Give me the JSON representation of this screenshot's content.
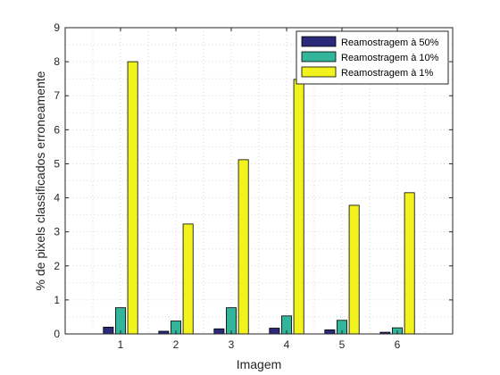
{
  "chart_data": {
    "type": "bar",
    "categories": [
      "1",
      "2",
      "3",
      "4",
      "5",
      "6"
    ],
    "xlabel": "Imagem",
    "ylabel": "% de pixels classificados erroneamente",
    "ylim": [
      0,
      9
    ],
    "xlim": [
      0,
      7
    ],
    "yticks": [
      "0",
      "1",
      "2",
      "3",
      "4",
      "5",
      "6",
      "7",
      "8",
      "9"
    ],
    "grid": true,
    "legend_position": "top-right",
    "series": [
      {
        "name": "Reamostragem à 50%",
        "color": "#2b2a7a",
        "values": [
          0.2,
          0.08,
          0.15,
          0.17,
          0.12,
          0.05
        ]
      },
      {
        "name": "Reamostragem à 10%",
        "color": "#33b59b",
        "values": [
          0.77,
          0.38,
          0.77,
          0.53,
          0.4,
          0.18
        ]
      },
      {
        "name": "Reamostragem à 1%",
        "color": "#f2f21e",
        "values": [
          8.0,
          3.23,
          5.12,
          7.48,
          3.78,
          4.15
        ]
      }
    ]
  }
}
